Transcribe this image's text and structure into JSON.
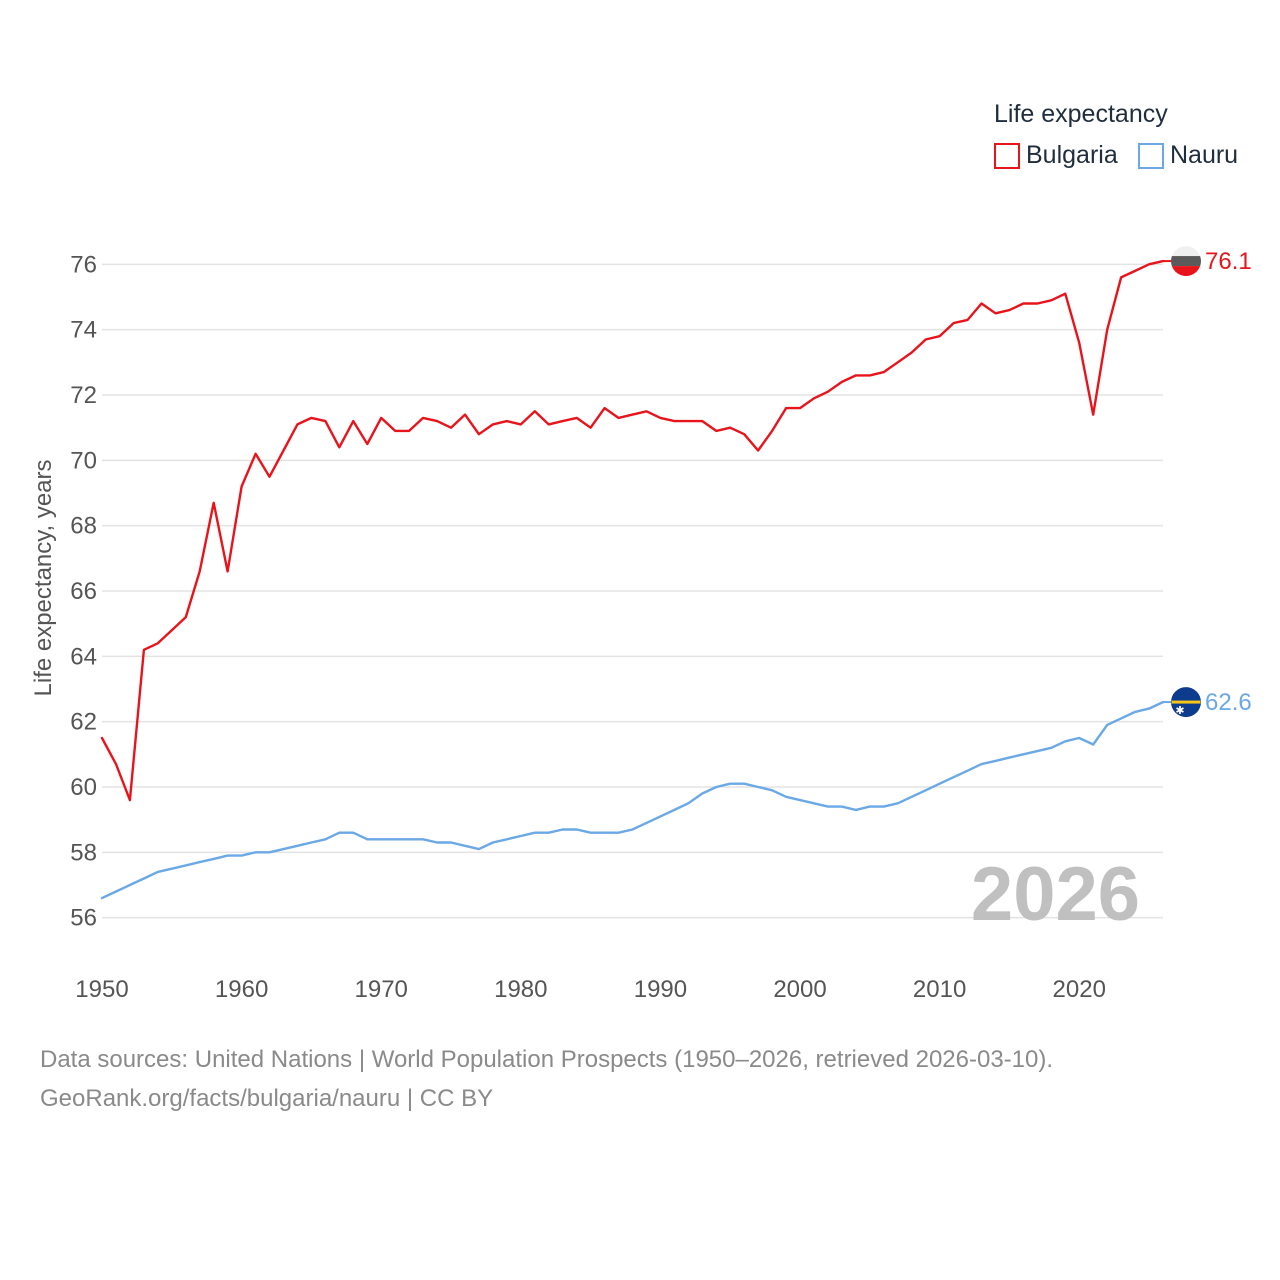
{
  "legend": {
    "title": "Life expectancy",
    "items": [
      {
        "name": "Bulgaria",
        "color": "#e8141c"
      },
      {
        "name": "Nauru",
        "color": "#6aa8e6"
      }
    ]
  },
  "footer": {
    "line1": "Data sources: United Nations | World Population Prospects (1950–2026, retrieved 2026-03-10).",
    "line2": "GeoRank.org/facts/bulgaria/nauru | CC BY"
  },
  "chart_data": {
    "type": "line",
    "title": "",
    "xlabel": "",
    "ylabel": "Life expectancy, years",
    "xlim": [
      1950,
      2026
    ],
    "ylim": [
      55.5,
      76.5
    ],
    "x_ticks": [
      1950,
      1960,
      1970,
      1980,
      1990,
      2000,
      2010,
      2020
    ],
    "y_ticks": [
      56,
      58,
      60,
      62,
      64,
      66,
      68,
      70,
      72,
      74,
      76
    ],
    "grid": true,
    "year_label": "2026",
    "series": [
      {
        "name": "Bulgaria",
        "color": "#e8141c",
        "end_label": "76.1",
        "x": [
          1950,
          1951,
          1952,
          1953,
          1954,
          1955,
          1956,
          1957,
          1958,
          1959,
          1960,
          1961,
          1962,
          1963,
          1964,
          1965,
          1966,
          1967,
          1968,
          1969,
          1970,
          1971,
          1972,
          1973,
          1974,
          1975,
          1976,
          1977,
          1978,
          1979,
          1980,
          1981,
          1982,
          1983,
          1984,
          1985,
          1986,
          1987,
          1988,
          1989,
          1990,
          1991,
          1992,
          1993,
          1994,
          1995,
          1996,
          1997,
          1998,
          1999,
          2000,
          2001,
          2002,
          2003,
          2004,
          2005,
          2006,
          2007,
          2008,
          2009,
          2010,
          2011,
          2012,
          2013,
          2014,
          2015,
          2016,
          2017,
          2018,
          2019,
          2020,
          2021,
          2022,
          2023,
          2024,
          2025,
          2026
        ],
        "values": [
          61.5,
          60.7,
          59.6,
          64.2,
          64.4,
          64.8,
          65.2,
          66.6,
          68.7,
          66.6,
          69.2,
          70.2,
          69.5,
          70.3,
          71.1,
          71.3,
          71.2,
          70.4,
          71.2,
          70.5,
          71.3,
          70.9,
          70.9,
          71.3,
          71.2,
          71.0,
          71.4,
          70.8,
          71.1,
          71.2,
          71.1,
          71.5,
          71.1,
          71.2,
          71.3,
          71.0,
          71.6,
          71.3,
          71.4,
          71.5,
          71.3,
          71.2,
          71.2,
          71.2,
          70.9,
          71.0,
          70.8,
          70.3,
          70.9,
          71.6,
          71.6,
          71.9,
          72.1,
          72.4,
          72.6,
          72.6,
          72.7,
          73.0,
          73.3,
          73.7,
          73.8,
          74.2,
          74.3,
          74.8,
          74.5,
          74.6,
          74.8,
          74.8,
          74.9,
          75.1,
          73.6,
          71.4,
          74.0,
          75.6,
          75.8,
          76.0,
          76.1
        ]
      },
      {
        "name": "Nauru",
        "color": "#6aa8e6",
        "end_label": "62.6",
        "x": [
          1950,
          1951,
          1952,
          1953,
          1954,
          1955,
          1956,
          1957,
          1958,
          1959,
          1960,
          1961,
          1962,
          1963,
          1964,
          1965,
          1966,
          1967,
          1968,
          1969,
          1970,
          1971,
          1972,
          1973,
          1974,
          1975,
          1976,
          1977,
          1978,
          1979,
          1980,
          1981,
          1982,
          1983,
          1984,
          1985,
          1986,
          1987,
          1988,
          1989,
          1990,
          1991,
          1992,
          1993,
          1994,
          1995,
          1996,
          1997,
          1998,
          1999,
          2000,
          2001,
          2002,
          2003,
          2004,
          2005,
          2006,
          2007,
          2008,
          2009,
          2010,
          2011,
          2012,
          2013,
          2014,
          2015,
          2016,
          2017,
          2018,
          2019,
          2020,
          2021,
          2022,
          2023,
          2024,
          2025,
          2026
        ],
        "values": [
          56.6,
          56.8,
          57.0,
          57.2,
          57.4,
          57.5,
          57.6,
          57.7,
          57.8,
          57.9,
          57.9,
          58.0,
          58.0,
          58.1,
          58.2,
          58.3,
          58.4,
          58.6,
          58.6,
          58.4,
          58.4,
          58.4,
          58.4,
          58.4,
          58.3,
          58.3,
          58.2,
          58.1,
          58.3,
          58.4,
          58.5,
          58.6,
          58.6,
          58.7,
          58.7,
          58.6,
          58.6,
          58.6,
          58.7,
          58.9,
          59.1,
          59.3,
          59.5,
          59.8,
          60.0,
          60.1,
          60.1,
          60.0,
          59.9,
          59.7,
          59.6,
          59.5,
          59.4,
          59.4,
          59.3,
          59.4,
          59.4,
          59.5,
          59.7,
          59.9,
          60.1,
          60.3,
          60.5,
          60.7,
          60.8,
          60.9,
          61.0,
          61.1,
          61.2,
          61.4,
          61.5,
          61.3,
          61.9,
          62.1,
          62.3,
          62.4,
          62.6
        ]
      }
    ]
  }
}
